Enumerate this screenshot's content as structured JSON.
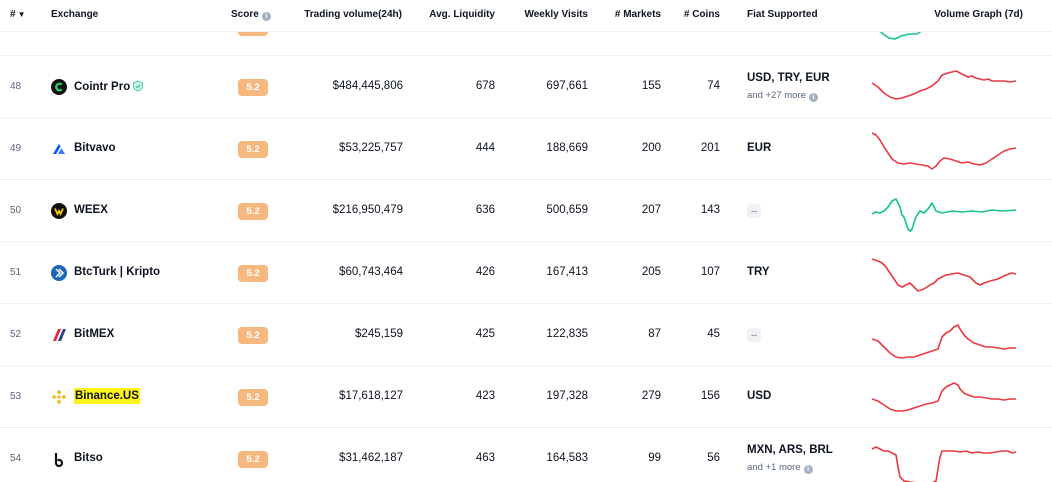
{
  "header": {
    "rank": "#",
    "exchange": "Exchange",
    "score": "Score",
    "volume": "Trading volume(24h)",
    "liquidity": "Avg. Liquidity",
    "visits": "Weekly Visits",
    "markets": "# Markets",
    "coins": "# Coins",
    "fiat": "Fiat Supported",
    "graph": "Volume Graph (7d)"
  },
  "rows": [
    {
      "rank": "48",
      "name": "Cointr Pro",
      "score": "5.2",
      "volume": "$484,445,806",
      "liquidity": "678",
      "visits": "697,661",
      "markets": "155",
      "coins": "74",
      "fiat": "USD, TRY, EUR",
      "fiat_more": "and +27 more",
      "graph_color": "#ea3943"
    },
    {
      "rank": "49",
      "name": "Bitvavo",
      "score": "5.2",
      "volume": "$53,225,757",
      "liquidity": "444",
      "visits": "188,669",
      "markets": "200",
      "coins": "201",
      "fiat": "EUR",
      "graph_color": "#ea3943"
    },
    {
      "rank": "50",
      "name": "WEEX",
      "score": "5.2",
      "volume": "$216,950,479",
      "liquidity": "636",
      "visits": "500,659",
      "markets": "207",
      "coins": "143",
      "fiat": "--",
      "graph_color": "#16c784"
    },
    {
      "rank": "51",
      "name": "BtcTurk | Kripto",
      "score": "5.2",
      "volume": "$60,743,464",
      "liquidity": "426",
      "visits": "167,413",
      "markets": "205",
      "coins": "107",
      "fiat": "TRY",
      "graph_color": "#ea3943"
    },
    {
      "rank": "52",
      "name": "BitMEX",
      "score": "5.2",
      "volume": "$245,159",
      "liquidity": "425",
      "visits": "122,835",
      "markets": "87",
      "coins": "45",
      "fiat": "--",
      "graph_color": "#ea3943"
    },
    {
      "rank": "53",
      "name": "Binance.US",
      "score": "5.2",
      "volume": "$17,618,127",
      "liquidity": "423",
      "visits": "197,328",
      "markets": "279",
      "coins": "156",
      "fiat": "USD",
      "graph_color": "#ea3943"
    },
    {
      "rank": "54",
      "name": "Bitso",
      "score": "5.2",
      "volume": "$31,462,187",
      "liquidity": "463",
      "visits": "164,583",
      "markets": "99",
      "coins": "56",
      "fiat": "MXN, ARS, BRL",
      "fiat_more": "and +1 more",
      "graph_color": "#ea3943"
    }
  ],
  "colors": {
    "score_bg": "#f6b87e",
    "up": "#16c784",
    "down": "#ea3943",
    "highlight": "#fff41a"
  },
  "icons": {
    "sort": "caret-down-icon",
    "info": "info-icon"
  }
}
